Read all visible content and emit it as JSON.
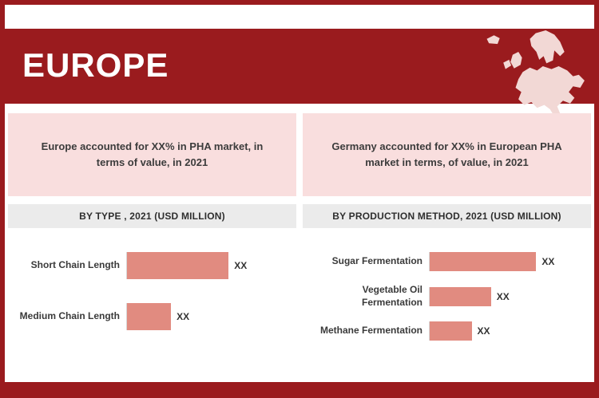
{
  "header": {
    "title": "EUROPE"
  },
  "colors": {
    "primary": "#9A1B1E",
    "info_box_bg": "#F9DEDE",
    "bar": "#E18B80",
    "section_header_bg": "#EBEBEB",
    "map_fill": "#F2D8D5"
  },
  "panels": {
    "left": {
      "info_text": "Europe accounted for XX% in PHA market, in terms of value, in 2021"
    },
    "right": {
      "info_text": "Germany accounted for XX% in European PHA market in terms, of value, in 2021"
    }
  },
  "chart_data": [
    {
      "type": "bar",
      "orientation": "horizontal",
      "title": "BY TYPE , 2021 (USD MILLION)",
      "categories": [
        "Short Chain Length",
        "Medium Chain Length"
      ],
      "values": [
        60,
        26
      ],
      "value_labels": [
        "XX",
        "XX"
      ],
      "unit": "USD Million",
      "bar_color": "#E18B80",
      "note": "values are relative bar widths in percent; actual figures masked as XX in source"
    },
    {
      "type": "bar",
      "orientation": "horizontal",
      "title": "BY PRODUCTION METHOD, 2021 (USD MILLION)",
      "categories": [
        "Sugar Fermentation",
        "Vegetable Oil Fermentation",
        "Methane Fermentation"
      ],
      "values": [
        66,
        38,
        26
      ],
      "value_labels": [
        "XX",
        "XX",
        "XX"
      ],
      "unit": "USD Million",
      "bar_color": "#E18B80",
      "note": "values are relative bar widths in percent; actual figures masked as XX in source"
    }
  ]
}
